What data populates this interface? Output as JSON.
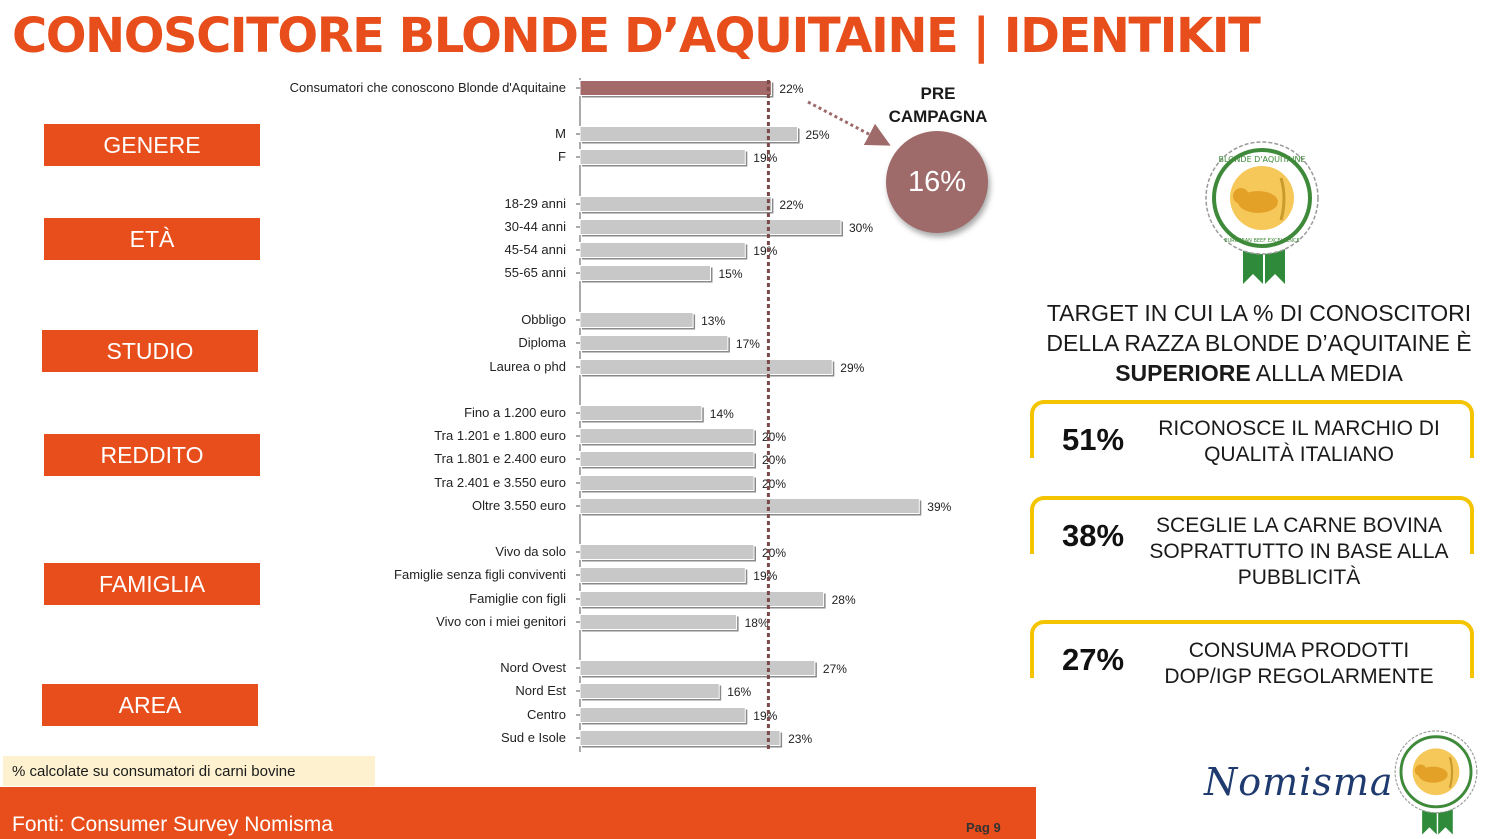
{
  "title": "CONOSCITORE BLONDE D’AQUITAINE | IDENTIKIT",
  "groups": [
    "GENERE",
    "ETÀ",
    "STUDIO",
    "REDDITO",
    "FAMIGLIA",
    "AREA"
  ],
  "chart_data": {
    "type": "bar",
    "orientation": "horizontal",
    "reference_line": 22,
    "colors": {
      "highlight": "#a46a6a",
      "bar": "#c8c8c8",
      "reference": "#7a4a4a"
    },
    "bars": [
      {
        "label": "Consumatori che conoscono Blonde d'Aquitaine",
        "value": 22,
        "display": "22%",
        "highlight": true
      },
      {
        "label": "M",
        "value": 25,
        "display": "25%"
      },
      {
        "label": "F",
        "value": 19,
        "display": "19%"
      },
      {
        "label": "18-29 anni",
        "value": 22,
        "display": "22%"
      },
      {
        "label": "30-44 anni",
        "value": 30,
        "display": "30%"
      },
      {
        "label": "45-54 anni",
        "value": 19,
        "display": "19%"
      },
      {
        "label": "55-65 anni",
        "value": 15,
        "display": "15%"
      },
      {
        "label": "Obbligo",
        "value": 13,
        "display": "13%"
      },
      {
        "label": "Diploma",
        "value": 17,
        "display": "17%"
      },
      {
        "label": "Laurea o phd",
        "value": 29,
        "display": "29%"
      },
      {
        "label": "Fino a 1.200 euro",
        "value": 14,
        "display": "14%"
      },
      {
        "label": "Tra 1.201 e 1.800 euro",
        "value": 20,
        "display": "20%"
      },
      {
        "label": "Tra 1.801 e 2.400 euro",
        "value": 20,
        "display": "20%"
      },
      {
        "label": "Tra 2.401 e 3.550 euro",
        "value": 20,
        "display": "20%"
      },
      {
        "label": "Oltre 3.550 euro",
        "value": 39,
        "display": "39%"
      },
      {
        "label": "Vivo da solo",
        "value": 20,
        "display": "20%"
      },
      {
        "label": "Famiglie senza figli conviventi",
        "value": 19,
        "display": "19%"
      },
      {
        "label": "Famiglie con figli",
        "value": 28,
        "display": "28%"
      },
      {
        "label": "Vivo con i miei genitori",
        "value": 18,
        "display": "18%"
      },
      {
        "label": "Nord Ovest",
        "value": 27,
        "display": "27%"
      },
      {
        "label": "Nord Est",
        "value": 16,
        "display": "16%"
      },
      {
        "label": "Centro",
        "value": 19,
        "display": "19%"
      },
      {
        "label": "Sud e Isole",
        "value": 23,
        "display": "23%"
      }
    ]
  },
  "pre_campaign": {
    "label": "PRE CAMPAGNA",
    "value": "16%"
  },
  "target": {
    "line1": "TARGET IN CUI LA % DI CONOSCITORI",
    "line2": "DELLA RAZZA BLONDE D’AQUITAINE È",
    "bold": "SUPERIORE",
    "rest": " ALLLA MEDIA"
  },
  "stats": [
    {
      "pct": "51%",
      "desc": "RICONOSCE IL MARCHIO DI QUALITÀ ITALIANO"
    },
    {
      "pct": "38%",
      "desc": "SCEGLIE LA CARNE BOVINA SOPRATTUTTO IN BASE ALLA PUBBLICITÀ"
    },
    {
      "pct": "27%",
      "desc": "CONSUMA PRODOTTI DOP/IGP REGOLARMENTE"
    }
  ],
  "note": "%  calcolate su consumatori di carni bovine",
  "source": "Fonti: Consumer Survey Nomisma",
  "page": "Pag 9",
  "brand": "Nomisma",
  "seal": {
    "top_text": "BLONDE D'AQUITAINE",
    "bottom_text": "EUROPEAN BEEF EXCELLENCE",
    "colors": {
      "ring": "#3f8a3a",
      "fill": "#f6c85a",
      "ribbon": "#2f8a3a"
    }
  }
}
